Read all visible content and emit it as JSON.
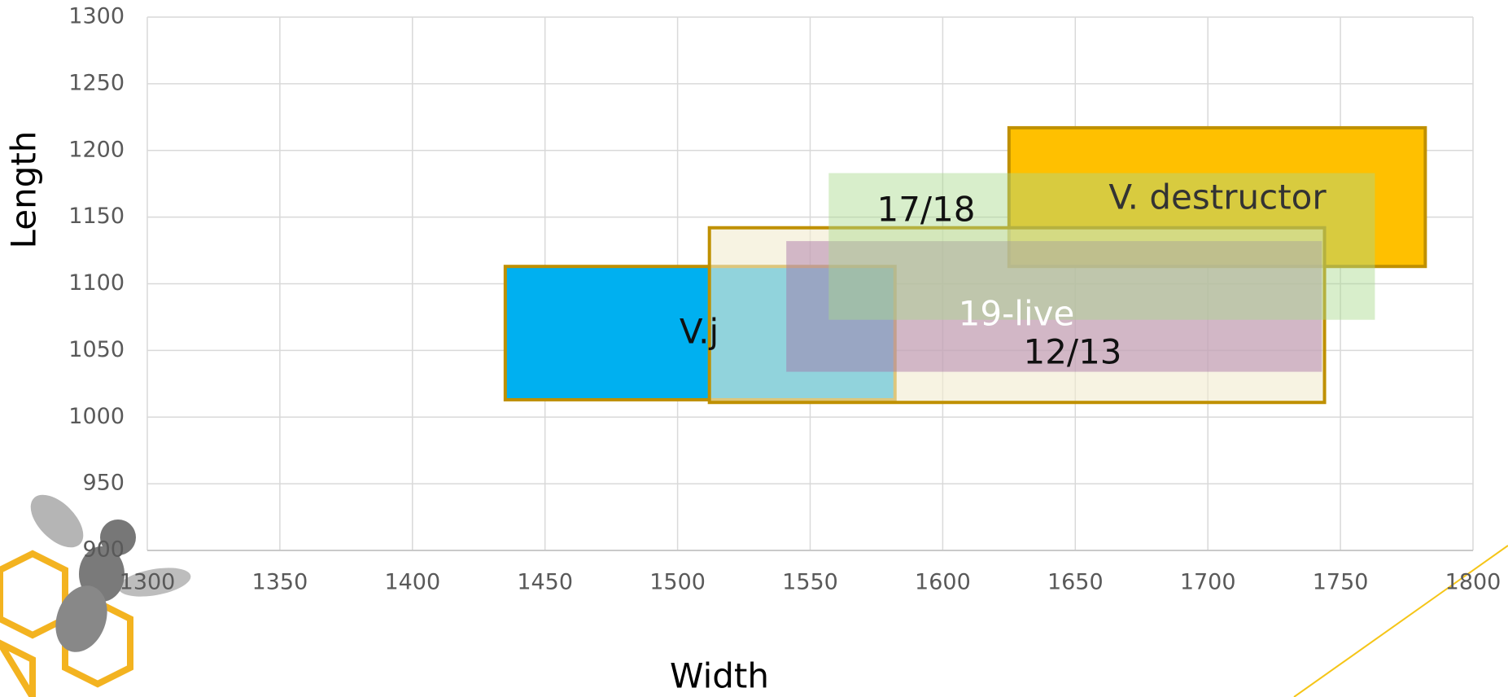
{
  "chart_data": {
    "type": "rectangle",
    "x_label": "Width",
    "y_label": "Length",
    "xlim": [
      1300,
      1800
    ],
    "xticks": [
      1300,
      1350,
      1400,
      1450,
      1500,
      1550,
      1600,
      1650,
      1700,
      1750,
      1800
    ],
    "ylim": [
      900,
      1300
    ],
    "yticks": [
      900,
      950,
      1000,
      1050,
      1100,
      1150,
      1200,
      1250,
      1300
    ],
    "grid": true,
    "series": [
      {
        "name": "V.j",
        "color": "#00B0F0",
        "x": [
          1435,
          1582
        ],
        "y": [
          1013,
          1113
        ]
      },
      {
        "name": "V. destructor",
        "color": "#FFC000",
        "x": [
          1625,
          1782
        ],
        "y": [
          1113,
          1217
        ]
      },
      {
        "name": "12/13",
        "color": "#F2EBCF",
        "x": [
          1512,
          1744
        ],
        "y": [
          1011,
          1142
        ]
      },
      {
        "name": "19-live",
        "color": "#A56FA5",
        "x": [
          1541,
          1743
        ],
        "y": [
          1034,
          1132
        ]
      },
      {
        "name": "17/18",
        "color": "#A9D98C",
        "x": [
          1557,
          1763
        ],
        "y": [
          1073,
          1183
        ]
      }
    ]
  }
}
